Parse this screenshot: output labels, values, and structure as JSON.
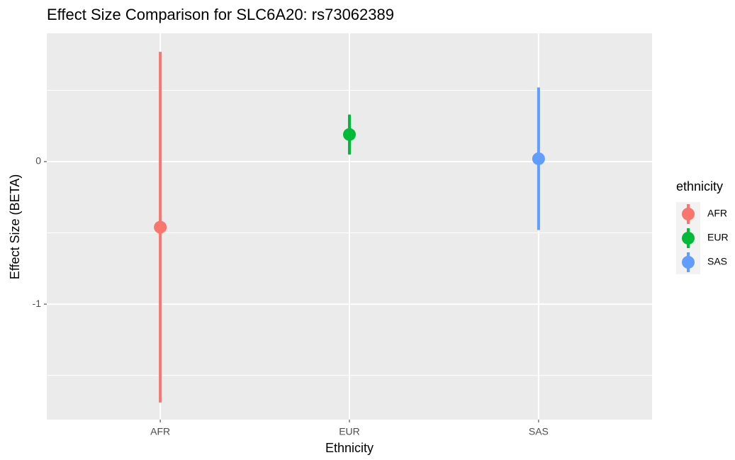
{
  "chart_data": {
    "type": "pointrange",
    "title": "Effect Size Comparison for SLC6A20: rs73062389",
    "x_label": "Ethnicity",
    "y_label": "Effect Size (BETA)",
    "legend_title": "ethnicity",
    "categories": [
      "AFR",
      "EUR",
      "SAS"
    ],
    "values": [
      -0.46,
      0.19,
      0.02
    ],
    "errors": [
      1.23,
      0.14,
      0.5
    ],
    "colors": [
      "#F8766D",
      "#00BA38",
      "#619CFF"
    ],
    "ylim": [
      -1.81,
      0.9
    ],
    "yticks": [
      0,
      -1
    ],
    "minor_yticks": [
      0.5,
      -0.5,
      -1.5
    ],
    "grid": true,
    "legend": "right"
  }
}
